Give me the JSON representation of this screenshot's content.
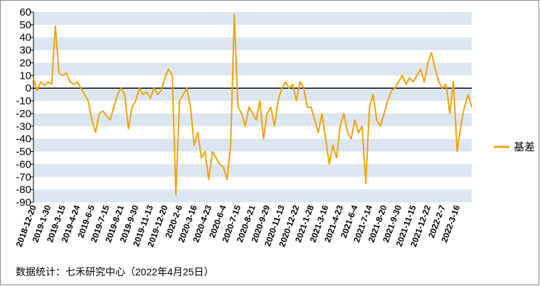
{
  "chart_data": {
    "type": "line",
    "categories": [
      "2018-12-20",
      null,
      null,
      null,
      "2019-1-30",
      null,
      null,
      null,
      "2019-3-15",
      null,
      null,
      null,
      "2019-4-24",
      null,
      null,
      null,
      "2019-6-5",
      null,
      null,
      null,
      "2019-7-15",
      null,
      null,
      null,
      "2019-8-21",
      null,
      null,
      null,
      "2019-9-30",
      null,
      null,
      null,
      "2019-11-13",
      null,
      null,
      null,
      "2019-12-20",
      null,
      null,
      null,
      "2020-2-6",
      null,
      null,
      null,
      "2020-3-16",
      null,
      null,
      null,
      "2020-4-23",
      null,
      null,
      null,
      "2020-6-4",
      null,
      null,
      null,
      "2020-7-15",
      null,
      null,
      null,
      "2020-8-21",
      null,
      null,
      null,
      "2020-9-29",
      null,
      null,
      null,
      "2020-11-13",
      null,
      null,
      null,
      "2020-12-22",
      null,
      null,
      null,
      "2021-1-28",
      null,
      null,
      null,
      "2021-3-16",
      null,
      null,
      null,
      "2021-4-23",
      null,
      null,
      null,
      "2021-6-4",
      null,
      null,
      null,
      "2021-7-14",
      null,
      null,
      null,
      "2021-8-20",
      null,
      null,
      null,
      "2021-9-30",
      null,
      null,
      null,
      "2021-11-15",
      null,
      null,
      null,
      "2021-12-22",
      null,
      null,
      null,
      "2022-2-7",
      null,
      null,
      null,
      "2022-3-16",
      null,
      null,
      null,
      null
    ],
    "series": [
      {
        "name": "基差",
        "color": "#f0a30a",
        "values": [
          8,
          -2,
          5,
          2,
          5,
          3,
          49,
          12,
          10,
          12,
          5,
          3,
          5,
          0,
          -5,
          -10,
          -25,
          -35,
          -20,
          -18,
          -22,
          -25,
          -15,
          -5,
          0,
          -5,
          -32,
          -15,
          -10,
          0,
          -5,
          -3,
          -8,
          0,
          -5,
          -2,
          8,
          15,
          10,
          -84,
          -10,
          -5,
          0,
          -15,
          -45,
          -35,
          -55,
          -50,
          -72,
          -50,
          -55,
          -60,
          -62,
          -72,
          -45,
          58,
          -15,
          -20,
          -30,
          -15,
          -20,
          -25,
          -10,
          -40,
          -20,
          -15,
          -30,
          -10,
          0,
          5,
          0,
          3,
          -10,
          5,
          0,
          -15,
          -15,
          -25,
          -35,
          -20,
          -40,
          -60,
          -45,
          -55,
          -30,
          -20,
          -35,
          -40,
          -25,
          -35,
          -30,
          -75,
          -15,
          -5,
          -25,
          -30,
          -20,
          -10,
          -2,
          0,
          5,
          10,
          3,
          8,
          5,
          10,
          15,
          5,
          20,
          28,
          15,
          5,
          0,
          3,
          -20,
          5,
          -50,
          -30,
          -15,
          -5,
          -15
        ]
      }
    ],
    "ylim": [
      -90,
      60
    ],
    "yticks": [
      -90,
      -80,
      -70,
      -60,
      -50,
      -40,
      -30,
      -20,
      -10,
      0,
      10,
      20,
      30,
      40,
      50,
      60
    ],
    "band_color": "#dce6f1",
    "legend": "right",
    "source": "数据统计：七禾研究中心（2022年4月25日）"
  }
}
